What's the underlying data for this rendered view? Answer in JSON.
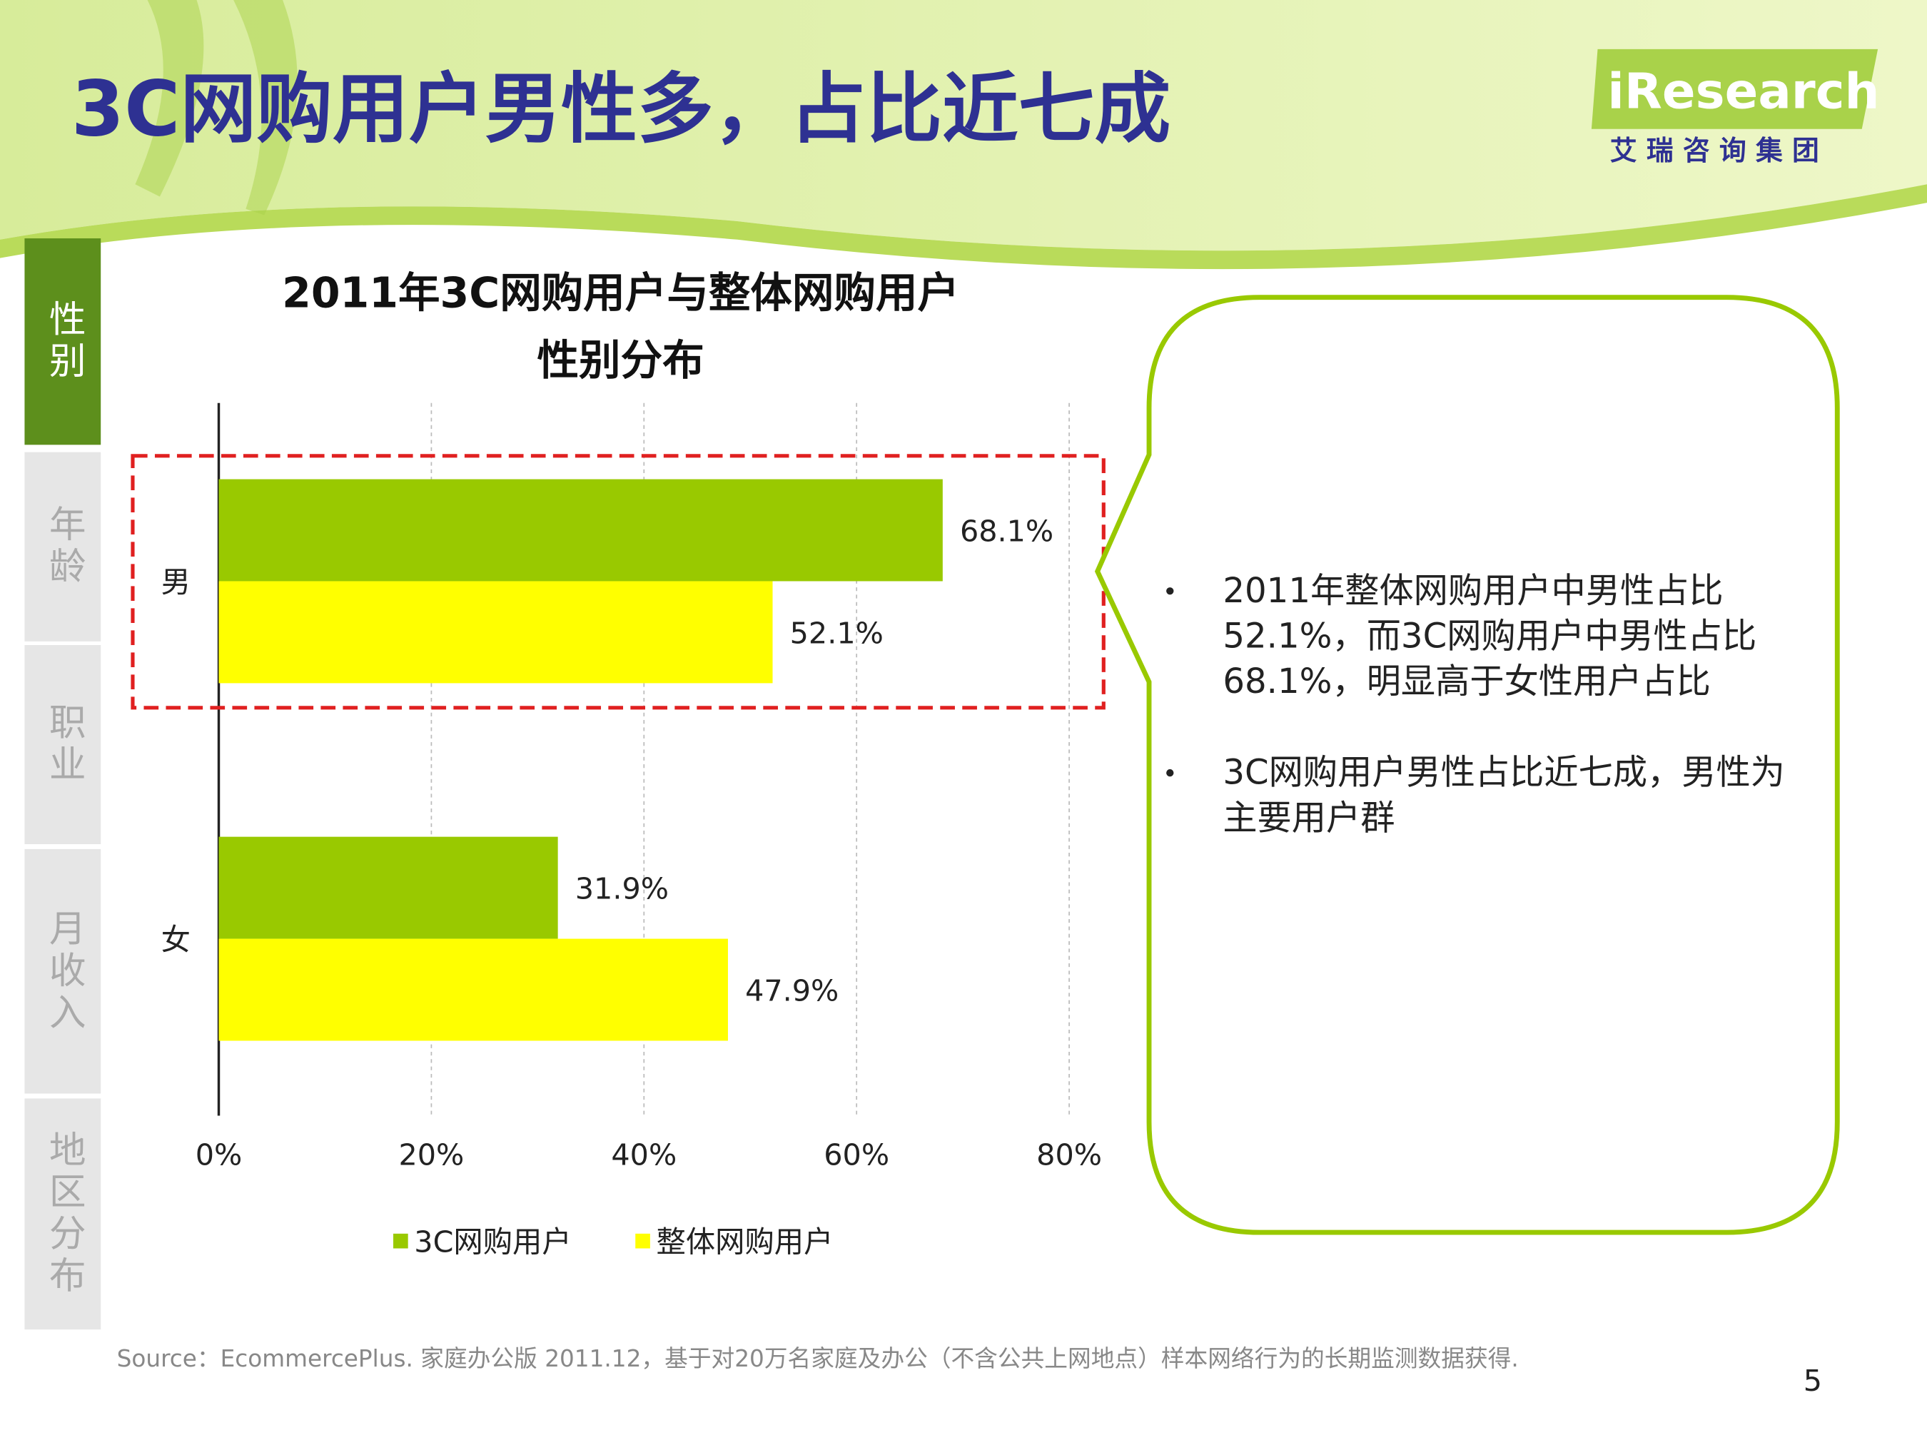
{
  "slide": {
    "title": "3C网购用户男性多，占比近七成",
    "logo": "iResearch",
    "logo_sub": "艾 瑞 咨 询 集 团",
    "tabs": [
      "性别",
      "年龄",
      "职业",
      "月收入",
      "地区分布"
    ],
    "bullets": [
      "2011年整体网购用户中男性占比52.1%，而3C网购用户中男性占比68.1%，明显高于女性用户占比",
      "3C网购用户男性占比近七成，男性为主要用户群"
    ],
    "source": "Source：EcommercePlus. 家庭办公版 2011.12，基于对20万名家庭及办公（不含公共上网地点）样本网络行为的长期监测数据获得.",
    "page": "5"
  },
  "chart_data": {
    "type": "hbar",
    "title": [
      "2011年3C网购用户与整体网购用户",
      "性别分布"
    ],
    "categories": [
      "男",
      "女"
    ],
    "series": [
      {
        "name": "3C网购用户",
        "color": "#99c900",
        "values": [
          68.1,
          31.9
        ],
        "value_labels": [
          "68.1%",
          "31.9%"
        ]
      },
      {
        "name": "整体网购用户",
        "color": "#ffff00",
        "values": [
          52.1,
          47.9
        ],
        "value_labels": [
          "52.1%",
          "47.9%"
        ]
      }
    ],
    "xlim": [
      0,
      80
    ],
    "xticks": [
      {
        "value": 0,
        "label": "0%"
      },
      {
        "value": 20,
        "label": "20%"
      },
      {
        "value": 40,
        "label": "40%"
      },
      {
        "value": 60,
        "label": "60%"
      },
      {
        "value": 80,
        "label": "80%"
      }
    ],
    "grid": true,
    "legend": "bottom"
  }
}
